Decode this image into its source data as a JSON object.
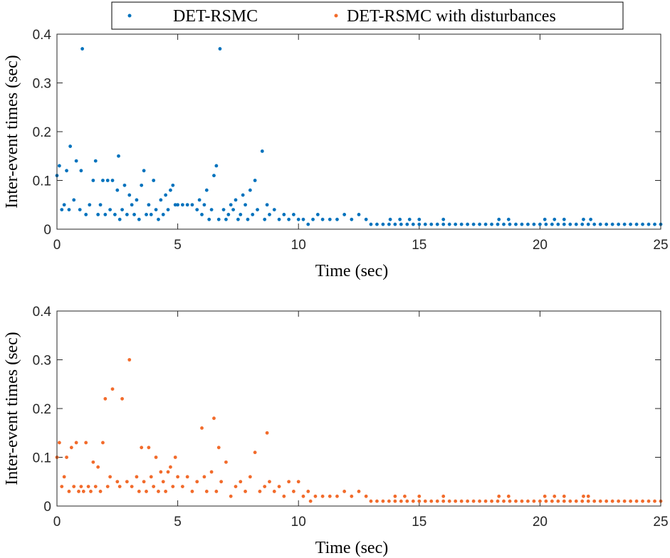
{
  "chart_data": [
    {
      "type": "scatter",
      "xlabel": "Time (sec)",
      "ylabel": "Inter-event times (sec)",
      "xlim": [
        0,
        25
      ],
      "ylim": [
        0,
        0.4
      ],
      "xticks": [
        0,
        5,
        10,
        15,
        20,
        25
      ],
      "yticks": [
        0,
        0.1,
        0.2,
        0.3,
        0.4
      ],
      "x": [
        0,
        0.1,
        0.2,
        0.3,
        0.4,
        0.5,
        0.55,
        0.7,
        0.8,
        0.95,
        1.0,
        1.05,
        1.2,
        1.35,
        1.5,
        1.6,
        1.7,
        1.8,
        1.9,
        2.0,
        2.1,
        2.2,
        2.3,
        2.4,
        2.5,
        2.55,
        2.6,
        2.7,
        2.8,
        2.9,
        3.0,
        3.1,
        3.2,
        3.3,
        3.4,
        3.5,
        3.6,
        3.7,
        3.8,
        3.9,
        4.0,
        4.1,
        4.2,
        4.3,
        4.4,
        4.5,
        4.6,
        4.7,
        4.8,
        4.9,
        5.0,
        5.2,
        5.4,
        5.6,
        5.8,
        5.9,
        6.0,
        6.1,
        6.2,
        6.3,
        6.4,
        6.5,
        6.6,
        6.7,
        6.75,
        6.9,
        7.0,
        7.1,
        7.2,
        7.3,
        7.4,
        7.5,
        7.6,
        7.7,
        7.8,
        7.9,
        8.0,
        8.1,
        8.2,
        8.3,
        8.5,
        8.6,
        8.7,
        8.8,
        9.0,
        9.2,
        9.4,
        9.6,
        9.8,
        10.0,
        10.2,
        10.4,
        10.6,
        10.8,
        11.0,
        11.3,
        11.6,
        11.9,
        12.2,
        12.5,
        12.8,
        13.0,
        13.25,
        13.5,
        13.75,
        14,
        14.25,
        14.5,
        14.75,
        15,
        15.25,
        15.5,
        15.75,
        16,
        16.25,
        16.5,
        16.75,
        17,
        17.25,
        17.5,
        17.75,
        18,
        18.25,
        18.5,
        18.75,
        19,
        19.25,
        19.5,
        19.75,
        20,
        20.25,
        20.5,
        20.75,
        21,
        21.25,
        21.5,
        21.75,
        22,
        22.25,
        22.5,
        22.75,
        23,
        23.25,
        23.5,
        23.75,
        24,
        24.25,
        24.5,
        24.75,
        25,
        13.8,
        14.2,
        14.6,
        15.0,
        16.0,
        18.3,
        18.7,
        20.2,
        20.6,
        21.0,
        21.8,
        22.1
      ],
      "series": [
        {
          "name": "DET-RSMC",
          "color": "#0072bd",
          "values": [
            0.11,
            0.13,
            0.04,
            0.05,
            0.12,
            0.04,
            0.17,
            0.06,
            0.14,
            0.04,
            0.12,
            0.37,
            0.03,
            0.05,
            0.1,
            0.14,
            0.03,
            0.05,
            0.1,
            0.03,
            0.1,
            0.04,
            0.1,
            0.03,
            0.08,
            0.15,
            0.02,
            0.04,
            0.09,
            0.03,
            0.07,
            0.05,
            0.03,
            0.06,
            0.02,
            0.09,
            0.12,
            0.03,
            0.05,
            0.03,
            0.1,
            0.04,
            0.02,
            0.06,
            0.03,
            0.07,
            0.04,
            0.08,
            0.09,
            0.05,
            0.05,
            0.05,
            0.05,
            0.05,
            0.04,
            0.06,
            0.03,
            0.05,
            0.08,
            0.02,
            0.04,
            0.11,
            0.13,
            0.02,
            0.37,
            0.04,
            0.02,
            0.03,
            0.05,
            0.04,
            0.06,
            0.02,
            0.03,
            0.07,
            0.05,
            0.02,
            0.08,
            0.03,
            0.1,
            0.04,
            0.16,
            0.02,
            0.05,
            0.03,
            0.04,
            0.02,
            0.03,
            0.02,
            0.03,
            0.02,
            0.02,
            0.01,
            0.02,
            0.03,
            0.02,
            0.02,
            0.02,
            0.03,
            0.02,
            0.03,
            0.02,
            0.01,
            0.01,
            0.01,
            0.01,
            0.01,
            0.01,
            0.01,
            0.01,
            0.01,
            0.01,
            0.01,
            0.01,
            0.01,
            0.01,
            0.01,
            0.01,
            0.01,
            0.01,
            0.01,
            0.01,
            0.01,
            0.01,
            0.01,
            0.01,
            0.01,
            0.01,
            0.01,
            0.01,
            0.01,
            0.01,
            0.01,
            0.01,
            0.01,
            0.01,
            0.01,
            0.01,
            0.01,
            0.01,
            0.01,
            0.01,
            0.01,
            0.01,
            0.01,
            0.01,
            0.01,
            0.01,
            0.01,
            0.01,
            0.01,
            0.02,
            0.02,
            0.02,
            0.02,
            0.02,
            0.02,
            0.02,
            0.02,
            0.02,
            0.02,
            0.02,
            0.02
          ]
        }
      ]
    },
    {
      "type": "scatter",
      "xlabel": "Time (sec)",
      "ylabel": "Inter-event times (sec)",
      "xlim": [
        0,
        25
      ],
      "ylim": [
        0,
        0.4
      ],
      "xticks": [
        0,
        5,
        10,
        15,
        20,
        25
      ],
      "yticks": [
        0,
        0.1,
        0.2,
        0.3,
        0.4
      ],
      "x": [
        0,
        0.1,
        0.2,
        0.3,
        0.4,
        0.5,
        0.6,
        0.7,
        0.8,
        0.9,
        1.0,
        1.1,
        1.2,
        1.3,
        1.4,
        1.5,
        1.6,
        1.7,
        1.8,
        1.9,
        2.0,
        2.1,
        2.2,
        2.3,
        2.5,
        2.6,
        2.7,
        2.9,
        3.0,
        3.1,
        3.3,
        3.4,
        3.5,
        3.6,
        3.7,
        3.8,
        3.9,
        4.0,
        4.1,
        4.2,
        4.3,
        4.4,
        4.5,
        4.6,
        4.7,
        4.8,
        4.9,
        5.0,
        5.2,
        5.4,
        5.6,
        5.8,
        6.0,
        6.1,
        6.2,
        6.4,
        6.5,
        6.6,
        6.7,
        6.8,
        7.0,
        7.2,
        7.4,
        7.6,
        7.8,
        8.0,
        8.2,
        8.4,
        8.6,
        8.7,
        8.8,
        9.0,
        9.2,
        9.4,
        9.6,
        9.8,
        10.0,
        10.2,
        10.4,
        10.5,
        10.7,
        11.0,
        11.3,
        11.6,
        11.9,
        12.2,
        12.5,
        12.8,
        13.0,
        13.25,
        13.5,
        13.75,
        14,
        14.25,
        14.5,
        14.75,
        15,
        15.25,
        15.5,
        15.75,
        16,
        16.25,
        16.5,
        16.75,
        17,
        17.25,
        17.5,
        17.75,
        18,
        18.25,
        18.5,
        18.75,
        19,
        19.25,
        19.5,
        19.75,
        20,
        20.25,
        20.5,
        20.75,
        21,
        21.25,
        21.5,
        21.75,
        22,
        22.25,
        22.5,
        22.75,
        23,
        23.25,
        23.5,
        23.75,
        24,
        24.25,
        24.5,
        24.75,
        25,
        14.0,
        14.4,
        15.0,
        16.0,
        18.3,
        18.7,
        20.2,
        20.6,
        21.0,
        21.8,
        22.0
      ],
      "series": [
        {
          "name": "DET-RSMC with disturbances",
          "color": "#f26b2b",
          "values": [
            0.1,
            0.13,
            0.04,
            0.06,
            0.1,
            0.03,
            0.12,
            0.04,
            0.13,
            0.03,
            0.04,
            0.03,
            0.13,
            0.04,
            0.03,
            0.09,
            0.04,
            0.08,
            0.03,
            0.13,
            0.22,
            0.04,
            0.06,
            0.24,
            0.05,
            0.04,
            0.22,
            0.05,
            0.3,
            0.04,
            0.06,
            0.03,
            0.12,
            0.05,
            0.03,
            0.12,
            0.06,
            0.04,
            0.1,
            0.03,
            0.07,
            0.05,
            0.03,
            0.07,
            0.08,
            0.04,
            0.1,
            0.06,
            0.04,
            0.06,
            0.03,
            0.05,
            0.16,
            0.06,
            0.03,
            0.07,
            0.18,
            0.03,
            0.12,
            0.05,
            0.09,
            0.02,
            0.04,
            0.05,
            0.03,
            0.06,
            0.11,
            0.03,
            0.04,
            0.15,
            0.05,
            0.03,
            0.04,
            0.02,
            0.05,
            0.03,
            0.05,
            0.02,
            0.03,
            0.01,
            0.02,
            0.02,
            0.02,
            0.02,
            0.03,
            0.02,
            0.03,
            0.02,
            0.01,
            0.01,
            0.01,
            0.01,
            0.01,
            0.01,
            0.01,
            0.01,
            0.01,
            0.01,
            0.01,
            0.01,
            0.01,
            0.01,
            0.01,
            0.01,
            0.01,
            0.01,
            0.01,
            0.01,
            0.01,
            0.01,
            0.01,
            0.01,
            0.01,
            0.01,
            0.01,
            0.01,
            0.01,
            0.01,
            0.01,
            0.01,
            0.01,
            0.01,
            0.01,
            0.01,
            0.01,
            0.01,
            0.01,
            0.01,
            0.01,
            0.01,
            0.01,
            0.01,
            0.01,
            0.01,
            0.01,
            0.01,
            0.01,
            0.02,
            0.02,
            0.02,
            0.02,
            0.02,
            0.02,
            0.02,
            0.02,
            0.02,
            0.02,
            0.02
          ]
        }
      ]
    }
  ]
}
